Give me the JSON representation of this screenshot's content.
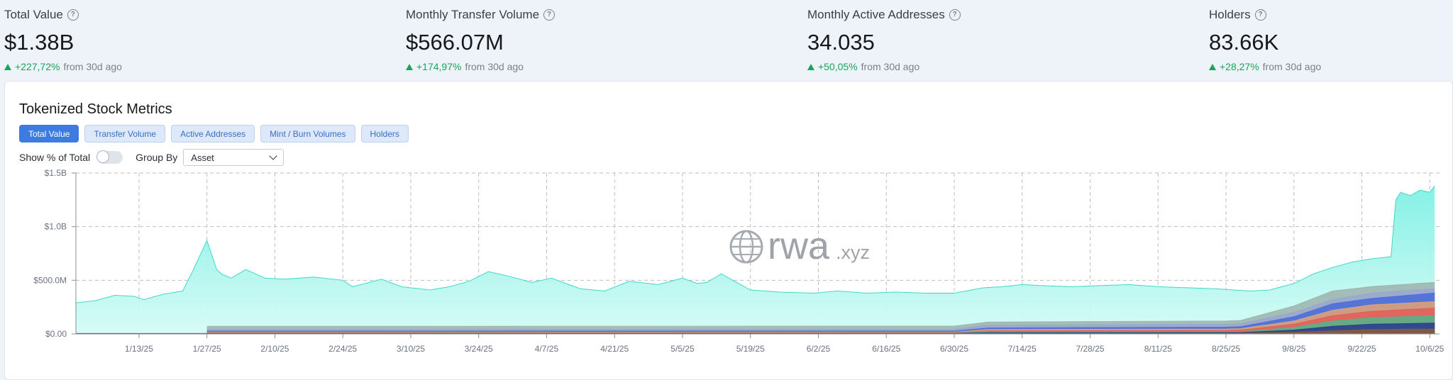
{
  "metrics": [
    {
      "label": "Total Value",
      "value": "$1.38B",
      "change": "+227,72%",
      "suffix": "from 30d ago"
    },
    {
      "label": "Monthly Transfer Volume",
      "value": "$566.07M",
      "change": "+174,97%",
      "suffix": "from 30d ago"
    },
    {
      "label": "Monthly Active Addresses",
      "value": "34.035",
      "change": "+50,05%",
      "suffix": "from 30d ago"
    },
    {
      "label": "Holders",
      "value": "83.66K",
      "change": "+28,27%",
      "suffix": "from 30d ago"
    }
  ],
  "panel": {
    "title": "Tokenized Stock Metrics",
    "tabs": [
      "Total Value",
      "Transfer Volume",
      "Active Addresses",
      "Mint / Burn Volumes",
      "Holders"
    ],
    "active_tab": "Total Value",
    "show_pct_label": "Show % of Total",
    "group_by_label": "Group By",
    "group_by_value": "Asset",
    "watermark_main": "rwa",
    "watermark_suffix": ".xyz"
  },
  "colors": {
    "accent": "#3d7be0",
    "positive": "#1aa35a",
    "main_area": "#7ff0e4"
  },
  "chart_data": {
    "type": "area",
    "y_ticks": [
      "$0.00",
      "$500.0M",
      "$1.0B",
      "$1.5B"
    ],
    "x_ticks": [
      "1/13/25",
      "1/27/25",
      "2/10/25",
      "2/24/25",
      "3/10/25",
      "3/24/25",
      "4/7/25",
      "4/21/25",
      "5/5/25",
      "5/19/25",
      "6/2/25",
      "6/16/25",
      "6/30/25",
      "7/14/25",
      "7/28/25",
      "8/11/25",
      "8/25/25",
      "9/8/25",
      "9/22/25",
      "10/6/25"
    ],
    "ylim": [
      0,
      1500000000
    ],
    "xlim": [
      "2024-12-31",
      "2025-10-08"
    ],
    "grid": true,
    "series": [
      {
        "color": "#7ff0e4",
        "x": [
          "2024-12-31",
          "2025-01-04",
          "2025-01-08",
          "2025-01-12",
          "2025-01-14",
          "2025-01-18",
          "2025-01-22",
          "2025-01-24",
          "2025-01-27",
          "2025-01-29",
          "2025-01-30",
          "2025-02-01",
          "2025-02-04",
          "2025-02-08",
          "2025-02-12",
          "2025-02-18",
          "2025-02-24",
          "2025-02-26",
          "2025-03-04",
          "2025-03-08",
          "2025-03-14",
          "2025-03-18",
          "2025-03-22",
          "2025-03-26",
          "2025-03-30",
          "2025-04-04",
          "2025-04-08",
          "2025-04-14",
          "2025-04-19",
          "2025-04-24",
          "2025-04-30",
          "2025-05-05",
          "2025-05-08",
          "2025-05-10",
          "2025-05-13",
          "2025-05-19",
          "2025-05-25",
          "2025-06-01",
          "2025-06-06",
          "2025-06-12",
          "2025-06-18",
          "2025-06-24",
          "2025-06-30",
          "2025-07-06",
          "2025-07-10",
          "2025-07-14",
          "2025-07-18",
          "2025-07-24",
          "2025-07-30",
          "2025-08-05",
          "2025-08-11",
          "2025-08-17",
          "2025-08-23",
          "2025-08-30",
          "2025-09-03",
          "2025-09-08",
          "2025-09-12",
          "2025-09-16",
          "2025-09-20",
          "2025-09-24",
          "2025-09-28",
          "2025-09-29",
          "2025-09-30",
          "2025-10-02",
          "2025-10-04",
          "2025-10-06",
          "2025-10-07"
        ],
        "y": [
          290000000,
          310000000,
          360000000,
          350000000,
          320000000,
          370000000,
          400000000,
          580000000,
          870000000,
          600000000,
          560000000,
          520000000,
          600000000,
          520000000,
          510000000,
          530000000,
          500000000,
          440000000,
          510000000,
          440000000,
          410000000,
          440000000,
          490000000,
          580000000,
          540000000,
          480000000,
          520000000,
          420000000,
          400000000,
          490000000,
          460000000,
          520000000,
          470000000,
          480000000,
          560000000,
          410000000,
          390000000,
          380000000,
          400000000,
          380000000,
          390000000,
          380000000,
          380000000,
          430000000,
          440000000,
          460000000,
          450000000,
          440000000,
          450000000,
          460000000,
          440000000,
          430000000,
          420000000,
          400000000,
          410000000,
          470000000,
          560000000,
          620000000,
          670000000,
          700000000,
          720000000,
          1250000000,
          1320000000,
          1290000000,
          1340000000,
          1320000000,
          1380000000
        ]
      },
      {
        "color": "#9fb6b0",
        "x": [
          "2025-01-27",
          "2025-06-30",
          "2025-07-07",
          "2025-08-25",
          "2025-08-28",
          "2025-09-08",
          "2025-09-16",
          "2025-09-24",
          "2025-10-07"
        ],
        "y": [
          70000000,
          72000000,
          110000000,
          120000000,
          125000000,
          260000000,
          400000000,
          440000000,
          480000000
        ]
      },
      {
        "color": "#9aa7cf",
        "x": [
          "2025-01-27",
          "2025-06-30",
          "2025-07-07",
          "2025-08-25",
          "2025-08-28",
          "2025-09-08",
          "2025-09-16",
          "2025-09-24",
          "2025-10-07"
        ],
        "y": [
          40000000,
          42000000,
          80000000,
          90000000,
          95000000,
          200000000,
          320000000,
          380000000,
          420000000
        ]
      },
      {
        "color": "#4d6fd8",
        "x": [
          "2025-01-27",
          "2025-06-30",
          "2025-07-07",
          "2025-08-25",
          "2025-08-28",
          "2025-09-08",
          "2025-09-16",
          "2025-09-24",
          "2025-10-07"
        ],
        "y": [
          25000000,
          26000000,
          55000000,
          62000000,
          66000000,
          160000000,
          280000000,
          330000000,
          380000000
        ]
      },
      {
        "color": "#d9a27a",
        "x": [
          "2025-01-27",
          "2025-06-30",
          "2025-07-07",
          "2025-08-25",
          "2025-08-28",
          "2025-09-08",
          "2025-09-16",
          "2025-09-24",
          "2025-10-07"
        ],
        "y": [
          15000000,
          16000000,
          40000000,
          45000000,
          48000000,
          120000000,
          220000000,
          270000000,
          300000000
        ]
      },
      {
        "color": "#e2605a",
        "x": [
          "2025-01-27",
          "2025-06-30",
          "2025-07-07",
          "2025-08-25",
          "2025-08-28",
          "2025-09-08",
          "2025-09-16",
          "2025-09-24",
          "2025-10-07"
        ],
        "y": [
          10000000,
          11000000,
          28000000,
          32000000,
          35000000,
          90000000,
          170000000,
          210000000,
          240000000
        ]
      },
      {
        "color": "#5bb08a",
        "x": [
          "2025-01-27",
          "2025-06-30",
          "2025-07-07",
          "2025-08-25",
          "2025-08-28",
          "2025-09-08",
          "2025-09-16",
          "2025-09-24",
          "2025-10-07"
        ],
        "y": [
          6000000,
          7000000,
          18000000,
          20000000,
          22000000,
          60000000,
          120000000,
          150000000,
          170000000
        ]
      },
      {
        "color": "#2b3f8f",
        "x": [
          "2024-12-31",
          "2025-06-30",
          "2025-07-07",
          "2025-08-25",
          "2025-08-28",
          "2025-09-08",
          "2025-09-16",
          "2025-09-24",
          "2025-10-07"
        ],
        "y": [
          3000000,
          4000000,
          10000000,
          12000000,
          13000000,
          35000000,
          70000000,
          90000000,
          100000000
        ]
      },
      {
        "color": "#8a5a3c",
        "x": [
          "2024-12-31",
          "2025-06-30",
          "2025-07-07",
          "2025-08-25",
          "2025-09-08",
          "2025-09-24",
          "2025-10-07"
        ],
        "y": [
          1000000,
          1500000,
          4000000,
          5000000,
          15000000,
          40000000,
          45000000
        ]
      }
    ]
  }
}
